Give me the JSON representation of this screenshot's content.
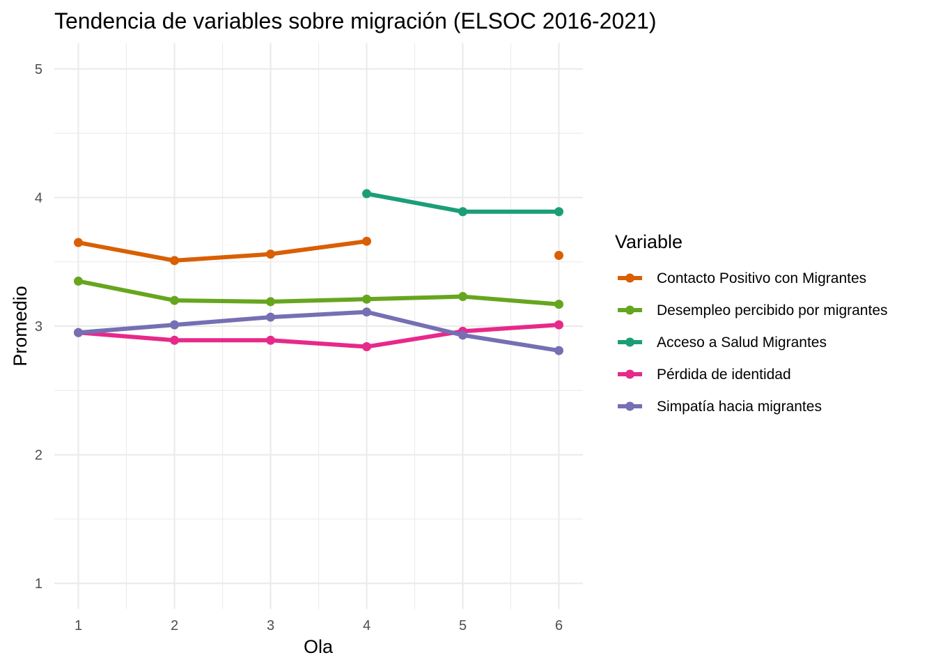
{
  "chart_data": {
    "type": "line",
    "title": "Tendencia de variables sobre migración (ELSOC 2016-2021)",
    "xlabel": "Ola",
    "ylabel": "Promedio",
    "x": [
      1,
      2,
      3,
      4,
      5,
      6
    ],
    "xlim": [
      0.75,
      6.25
    ],
    "ylim": [
      0.8,
      5.2
    ],
    "x_ticks": [
      "1",
      "2",
      "3",
      "4",
      "5",
      "6"
    ],
    "y_ticks": [
      "1",
      "2",
      "3",
      "4",
      "5"
    ],
    "grid": true,
    "legend": {
      "title": "Variable",
      "position": "right"
    },
    "series": [
      {
        "name": "Contacto Positivo con Migrantes",
        "color": "#D95F02",
        "values": [
          3.65,
          3.51,
          3.56,
          3.66,
          null,
          3.55
        ]
      },
      {
        "name": "Desempleo percibido por migrantes",
        "color": "#66A61E",
        "values": [
          3.35,
          3.2,
          3.19,
          3.21,
          3.23,
          3.17
        ]
      },
      {
        "name": "Acceso a Salud Migrantes",
        "color": "#1B9E77",
        "values": [
          null,
          null,
          null,
          4.03,
          3.89,
          3.89
        ]
      },
      {
        "name": "Pérdida de identidad",
        "color": "#E7298A",
        "values": [
          2.95,
          2.89,
          2.89,
          2.84,
          2.96,
          3.01
        ]
      },
      {
        "name": "Simpatía hacia migrantes",
        "color": "#7570B3",
        "values": [
          2.95,
          3.01,
          3.07,
          3.11,
          2.93,
          2.81
        ]
      }
    ]
  }
}
